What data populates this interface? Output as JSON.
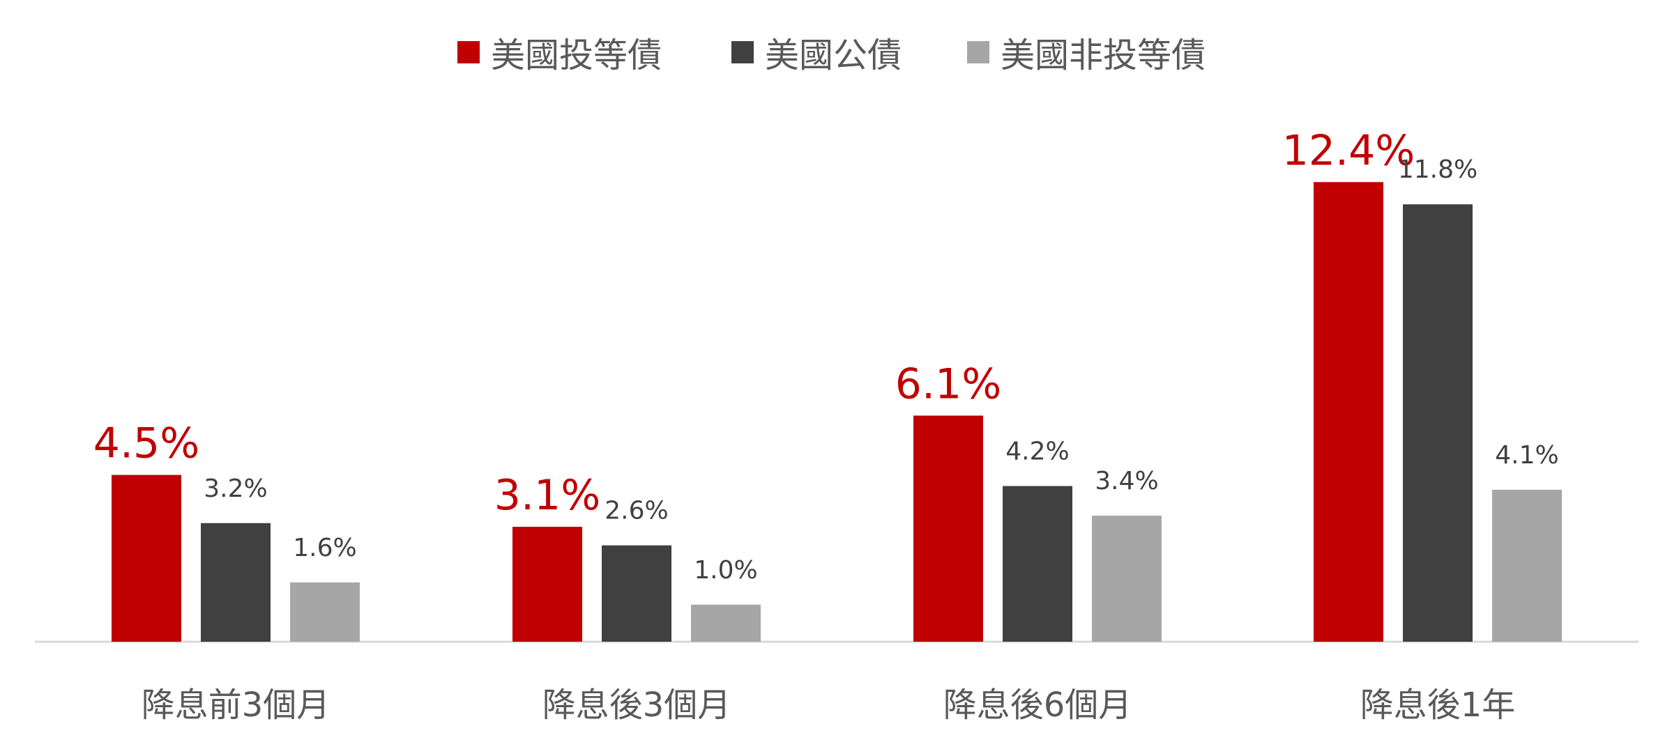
{
  "chart_data": {
    "type": "bar",
    "categories": [
      "降息前3個月",
      "降息後3個月",
      "降息後6個月",
      "降息後1年"
    ],
    "series": [
      {
        "name": "美國投等債",
        "values": [
          4.5,
          3.1,
          6.1,
          12.4
        ],
        "color": "#C00000",
        "labels": [
          "4.5%",
          "3.1%",
          "6.1%",
          "12.4%"
        ],
        "emphasized": true
      },
      {
        "name": "美國公債",
        "values": [
          3.2,
          2.6,
          4.2,
          11.8
        ],
        "color": "#404040",
        "labels": [
          "3.2%",
          "2.6%",
          "4.2%",
          "11.8%"
        ],
        "emphasized": false
      },
      {
        "name": "美國非投等債",
        "values": [
          1.6,
          1.0,
          3.4,
          4.1
        ],
        "color": "#A6A6A6",
        "labels": [
          "1.6%",
          "1.0%",
          "3.4%",
          "4.1%"
        ],
        "emphasized": false
      }
    ],
    "ylim": [
      0,
      13.5
    ],
    "grid": false,
    "legend_position": "top-center"
  }
}
